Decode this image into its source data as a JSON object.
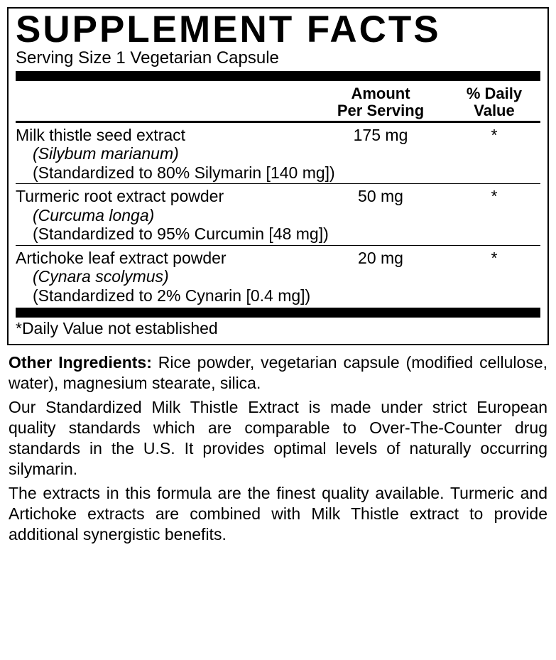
{
  "title": "SUPPLEMENT FACTS",
  "serving": "Serving Size 1 Vegetarian Capsule",
  "headers": {
    "amount_l1": "Amount",
    "amount_l2": "Per Serving",
    "dv_l1": "% Daily",
    "dv_l2": "Value"
  },
  "ingredients": [
    {
      "name": "Milk thistle seed extract",
      "amount": "175 mg",
      "dv": "*",
      "latin": "(Silybum marianum)",
      "std": "(Standardized to 80% Silymarin [140 mg])"
    },
    {
      "name": "Turmeric root extract powder",
      "amount": "50 mg",
      "dv": "*",
      "latin": "(Curcuma longa)",
      "std": "(Standardized to 95% Curcumin [48 mg])"
    },
    {
      "name": "Artichoke leaf extract powder",
      "amount": "20 mg",
      "dv": "*",
      "latin": "(Cynara scolymus)",
      "std": "(Standardized to 2% Cynarin [0.4 mg])"
    }
  ],
  "footnote": "*Daily Value not established",
  "other_label": "Other Ingredients:",
  "other_text": " Rice powder, vegetarian capsule (modified cellulose, water), magnesium stearate, silica.",
  "para1": "Our Standardized Milk Thistle Extract is made under strict European quality standards which are comparable to Over-The-Counter drug standards in the U.S. It provides optimal levels of naturally occurring silymarin.",
  "para2": "The extracts in this formula are the finest quality available. Turmeric and Artichoke extracts are  combined with Milk Thistle extract to provide additional synergistic benefits."
}
